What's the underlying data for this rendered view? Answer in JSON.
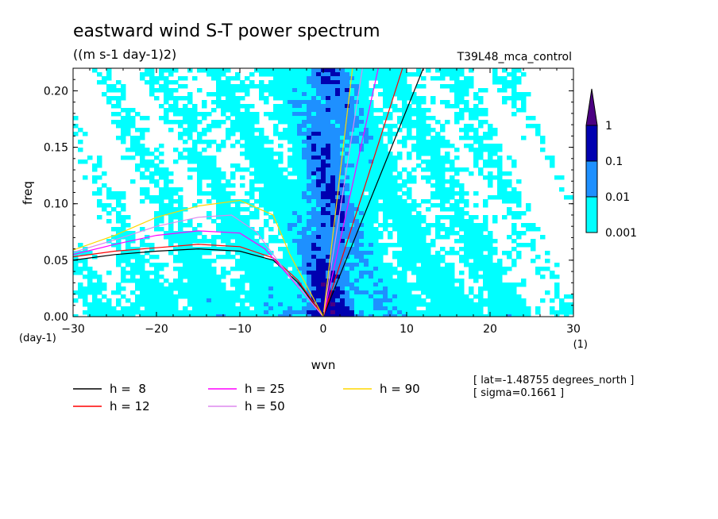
{
  "figure": {
    "title": "eastward wind S-T power spectrum",
    "units": "((m s-1 day-1)2)",
    "dataset": "T39L48_mca_control",
    "info_lines": [
      "[ lat=-1.48755 degrees_north ]",
      "[ sigma=0.1661 ]"
    ]
  },
  "chart_data": {
    "type": "heatmap",
    "xlabel": "wvn",
    "ylabel": "freq",
    "xunit": "(1)",
    "yunit": "(day-1)",
    "xlim": [
      -30,
      30
    ],
    "ylim": [
      0,
      0.22
    ],
    "xticks": [
      -30,
      -20,
      -10,
      0,
      10,
      20,
      30
    ],
    "yticks": [
      0.0,
      0.05,
      0.1,
      0.15,
      0.2
    ],
    "ytick_labels": [
      "0.00",
      "0.05",
      "0.10",
      "0.15",
      "0.20"
    ],
    "grid": false,
    "colorbar": {
      "levels": [
        "0.001",
        "0.01",
        "0.1",
        "1"
      ],
      "colors": [
        "#00ffff",
        "#1e90ff",
        "#0000b0",
        "#4b0082"
      ]
    },
    "dispersion_curves": [
      {
        "name": "h =  8",
        "color": "#000000",
        "kelvin": [
          [
            0,
            0
          ],
          [
            12,
            0.22
          ]
        ],
        "rossby": [
          [
            -30,
            0.05
          ],
          [
            -25,
            0.055
          ],
          [
            -20,
            0.058
          ],
          [
            -15,
            0.06
          ],
          [
            -10,
            0.058
          ],
          [
            -6,
            0.05
          ],
          [
            -3,
            0.03
          ],
          [
            0,
            0
          ]
        ]
      },
      {
        "name": "h = 12",
        "color": "#ff0000",
        "kelvin": [
          [
            0,
            0
          ],
          [
            9.5,
            0.22
          ]
        ],
        "rossby": [
          [
            -30,
            0.053
          ],
          [
            -25,
            0.058
          ],
          [
            -20,
            0.061
          ],
          [
            -15,
            0.064
          ],
          [
            -10,
            0.062
          ],
          [
            -6,
            0.052
          ],
          [
            -3,
            0.032
          ],
          [
            0,
            0
          ]
        ]
      },
      {
        "name": "h = 25",
        "color": "#ff00ff",
        "kelvin": [
          [
            0,
            0
          ],
          [
            6.6,
            0.22
          ]
        ],
        "rossby": [
          [
            -30,
            0.055
          ],
          [
            -25,
            0.064
          ],
          [
            -20,
            0.072
          ],
          [
            -15,
            0.076
          ],
          [
            -10,
            0.074
          ],
          [
            -7,
            0.06
          ],
          [
            -4,
            0.035
          ],
          [
            0,
            0
          ]
        ]
      },
      {
        "name": "h = 50",
        "color": "#dd88ee",
        "kelvin": [
          [
            0,
            0
          ],
          [
            4.7,
            0.22
          ]
        ],
        "rossby": [
          [
            -30,
            0.057
          ],
          [
            -25,
            0.068
          ],
          [
            -20,
            0.08
          ],
          [
            -15,
            0.088
          ],
          [
            -11,
            0.09
          ],
          [
            -8,
            0.075
          ],
          [
            -5,
            0.045
          ],
          [
            0,
            0
          ]
        ]
      },
      {
        "name": "h = 90",
        "color": "#ffd700",
        "kelvin": [
          [
            0,
            0
          ],
          [
            3.5,
            0.22
          ]
        ],
        "rossby": [
          [
            -30,
            0.059
          ],
          [
            -25,
            0.072
          ],
          [
            -20,
            0.088
          ],
          [
            -15,
            0.098
          ],
          [
            -10,
            0.103
          ],
          [
            -6,
            0.09
          ],
          [
            -4,
            0.055
          ],
          [
            0,
            0
          ]
        ]
      }
    ]
  }
}
